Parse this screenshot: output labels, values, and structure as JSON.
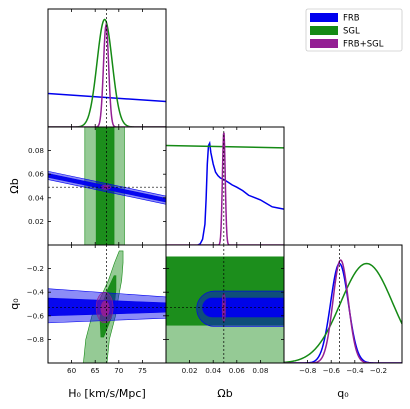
{
  "colors": {
    "frb": "#0000ee",
    "sgl": "#158a15",
    "joint": "#941f94"
  },
  "chart_data": {
    "type": "corner-plot",
    "parameters": [
      {
        "key": "H0",
        "label": "H₀ [km/s/Mpc]",
        "range": [
          55,
          80
        ],
        "truth": 67.4,
        "ticks": [
          60,
          65,
          70,
          75
        ],
        "tick_labels": [
          "60",
          "65",
          "70",
          "75"
        ]
      },
      {
        "key": "Ob",
        "label": "Ωb",
        "range": [
          0.0,
          0.1
        ],
        "truth": 0.049,
        "ticks": [
          0.02,
          0.04,
          0.06,
          0.08
        ],
        "tick_labels": [
          "0.02",
          "0.04",
          "0.06",
          "0.08"
        ]
      },
      {
        "key": "q0",
        "label": "q₀",
        "range": [
          -1.0,
          0.0
        ],
        "truth": -0.53,
        "ticks": [
          -0.8,
          -0.6,
          -0.4,
          -0.2
        ],
        "tick_labels": [
          "−0.8",
          "−0.6",
          "−0.4",
          "−0.2"
        ]
      }
    ],
    "legend": {
      "position": "top-right",
      "entries": [
        "FRB",
        "SGL",
        "FRB+SGL"
      ]
    },
    "marginals": {
      "H0": [
        {
          "series": "FRB",
          "shape": "flat",
          "x": [
            55,
            80
          ],
          "y": [
            0.29,
            0.22
          ]
        },
        {
          "series": "SGL",
          "shape": "gaussian",
          "mu": 67.0,
          "sigma": 1.6,
          "peak": 0.93
        },
        {
          "series": "FRB+SGL",
          "shape": "gaussian",
          "mu": 67.3,
          "sigma": 0.55,
          "peak": 0.88
        }
      ],
      "Ob": [
        {
          "series": "FRB",
          "shape": "curve",
          "x": [
            0.027,
            0.029,
            0.031,
            0.033,
            0.034,
            0.035,
            0.036,
            0.037,
            0.038,
            0.04,
            0.042,
            0.044,
            0.046,
            0.048,
            0.05,
            0.053,
            0.056,
            0.06,
            0.065,
            0.07,
            0.075,
            0.08,
            0.085,
            0.09,
            0.095,
            0.1
          ],
          "y": [
            0.0,
            0.01,
            0.05,
            0.18,
            0.4,
            0.7,
            0.86,
            0.88,
            0.8,
            0.7,
            0.63,
            0.6,
            0.58,
            0.57,
            0.56,
            0.54,
            0.52,
            0.5,
            0.47,
            0.43,
            0.41,
            0.39,
            0.36,
            0.33,
            0.32,
            0.31
          ]
        },
        {
          "series": "SGL",
          "shape": "flat",
          "x": [
            0.0,
            0.1
          ],
          "y": [
            0.86,
            0.84
          ]
        },
        {
          "series": "FRB+SGL",
          "shape": "gaussian",
          "mu": 0.049,
          "sigma": 0.0012,
          "peak": 0.98
        }
      ],
      "q0": [
        {
          "series": "FRB",
          "shape": "gaussian",
          "mu": -0.53,
          "sigma": 0.075,
          "peak": 0.86
        },
        {
          "series": "SGL",
          "shape": "gaussian",
          "mu": -0.3,
          "sigma": 0.22,
          "peak": 0.86
        },
        {
          "series": "FRB+SGL",
          "shape": "gaussian",
          "mu": -0.52,
          "sigma": 0.065,
          "peak": 0.89
        }
      ]
    },
    "contours": [
      {
        "pair": [
          "H0",
          "Ob"
        ],
        "regions": [
          {
            "series": "SGL",
            "level": "2sigma",
            "shape": "band_x",
            "range": [
              62.8,
              71.2
            ]
          },
          {
            "series": "SGL",
            "level": "1sigma",
            "shape": "band_x",
            "range": [
              65.2,
              69.0
            ]
          },
          {
            "series": "FRB",
            "level": "2sigma",
            "shape": "line_band",
            "x0": 55,
            "y0": 0.059,
            "x1": 80,
            "y1": 0.038,
            "half_width": 0.0035
          },
          {
            "series": "FRB",
            "level": "1sigma",
            "shape": "line_band",
            "x0": 55,
            "y0": 0.059,
            "x1": 80,
            "y1": 0.038,
            "half_width": 0.0016
          },
          {
            "series": "FRB+SGL",
            "level": "2sigma",
            "shape": "ellipse",
            "cx": 67.3,
            "cy": 0.049,
            "rx": 1.0,
            "ry": 0.0018
          },
          {
            "series": "FRB+SGL",
            "level": "1sigma",
            "shape": "ellipse",
            "cx": 67.3,
            "cy": 0.049,
            "rx": 0.5,
            "ry": 0.0009
          }
        ]
      },
      {
        "pair": [
          "H0",
          "q0"
        ],
        "regions": [
          {
            "series": "SGL",
            "level": "2sigma",
            "shape": "banana",
            "center": [
              [
                65.0,
                -1.0
              ],
              [
                65.5,
                -0.8
              ],
              [
                66.8,
                -0.6
              ],
              [
                68.0,
                -0.45
              ],
              [
                69.2,
                -0.3
              ],
              [
                70.0,
                -0.15
              ],
              [
                70.5,
                -0.05
              ]
            ],
            "half_width": [
              2.5,
              2.5,
              2.5,
              1.9,
              1.4,
              0.9,
              0.4
            ]
          },
          {
            "series": "SGL",
            "level": "1sigma",
            "shape": "banana",
            "center": [
              [
                66.5,
                -0.78
              ],
              [
                67.2,
                -0.62
              ],
              [
                67.8,
                -0.5
              ],
              [
                68.5,
                -0.38
              ],
              [
                69.2,
                -0.26
              ]
            ],
            "half_width": [
              0.3,
              1.2,
              1.3,
              0.9,
              0.2
            ]
          },
          {
            "series": "FRB",
            "level": "2sigma",
            "shape": "band_y",
            "x_range": [
              55,
              80
            ],
            "y_left": [
              -0.66,
              -0.37
            ],
            "y_right": [
              -0.62,
              -0.44
            ]
          },
          {
            "series": "FRB",
            "level": "1sigma",
            "shape": "band_y",
            "x_range": [
              55,
              80
            ],
            "y_left": [
              -0.6,
              -0.45
            ],
            "y_right": [
              -0.57,
              -0.49
            ]
          },
          {
            "series": "FRB+SGL",
            "level": "2sigma",
            "shape": "ellipse",
            "cx": 67.0,
            "cy": -0.53,
            "rx": 1.8,
            "ry": 0.13
          },
          {
            "series": "FRB+SGL",
            "level": "1sigma",
            "shape": "ellipse",
            "cx": 67.1,
            "cy": -0.54,
            "rx": 0.9,
            "ry": 0.065
          }
        ]
      },
      {
        "pair": [
          "Ob",
          "q0"
        ],
        "regions": [
          {
            "series": "SGL",
            "level": "2sigma",
            "shape": "rect",
            "x_range": [
              0.0,
              0.1
            ],
            "y_range": [
              -1.0,
              -0.1
            ]
          },
          {
            "series": "SGL",
            "level": "1sigma",
            "shape": "rect",
            "x_range": [
              0.0,
              0.1
            ],
            "y_range": [
              -0.68,
              -0.1
            ]
          },
          {
            "series": "FRB",
            "level": "2sigma",
            "shape": "stadium",
            "x_range": [
              0.026,
              0.1
            ],
            "y_range": [
              -0.69,
              -0.39
            ]
          },
          {
            "series": "FRB",
            "level": "1sigma",
            "shape": "stadium",
            "x_range": [
              0.031,
              0.1
            ],
            "y_range": [
              -0.61,
              -0.45
            ]
          },
          {
            "series": "FRB+SGL",
            "level": "2sigma",
            "shape": "ellipse",
            "cx": 0.049,
            "cy": -0.53,
            "rx": 0.0014,
            "ry": 0.12
          },
          {
            "series": "FRB+SGL",
            "level": "1sigma",
            "shape": "ellipse",
            "cx": 0.049,
            "cy": -0.54,
            "rx": 0.0007,
            "ry": 0.06
          }
        ]
      }
    ]
  }
}
